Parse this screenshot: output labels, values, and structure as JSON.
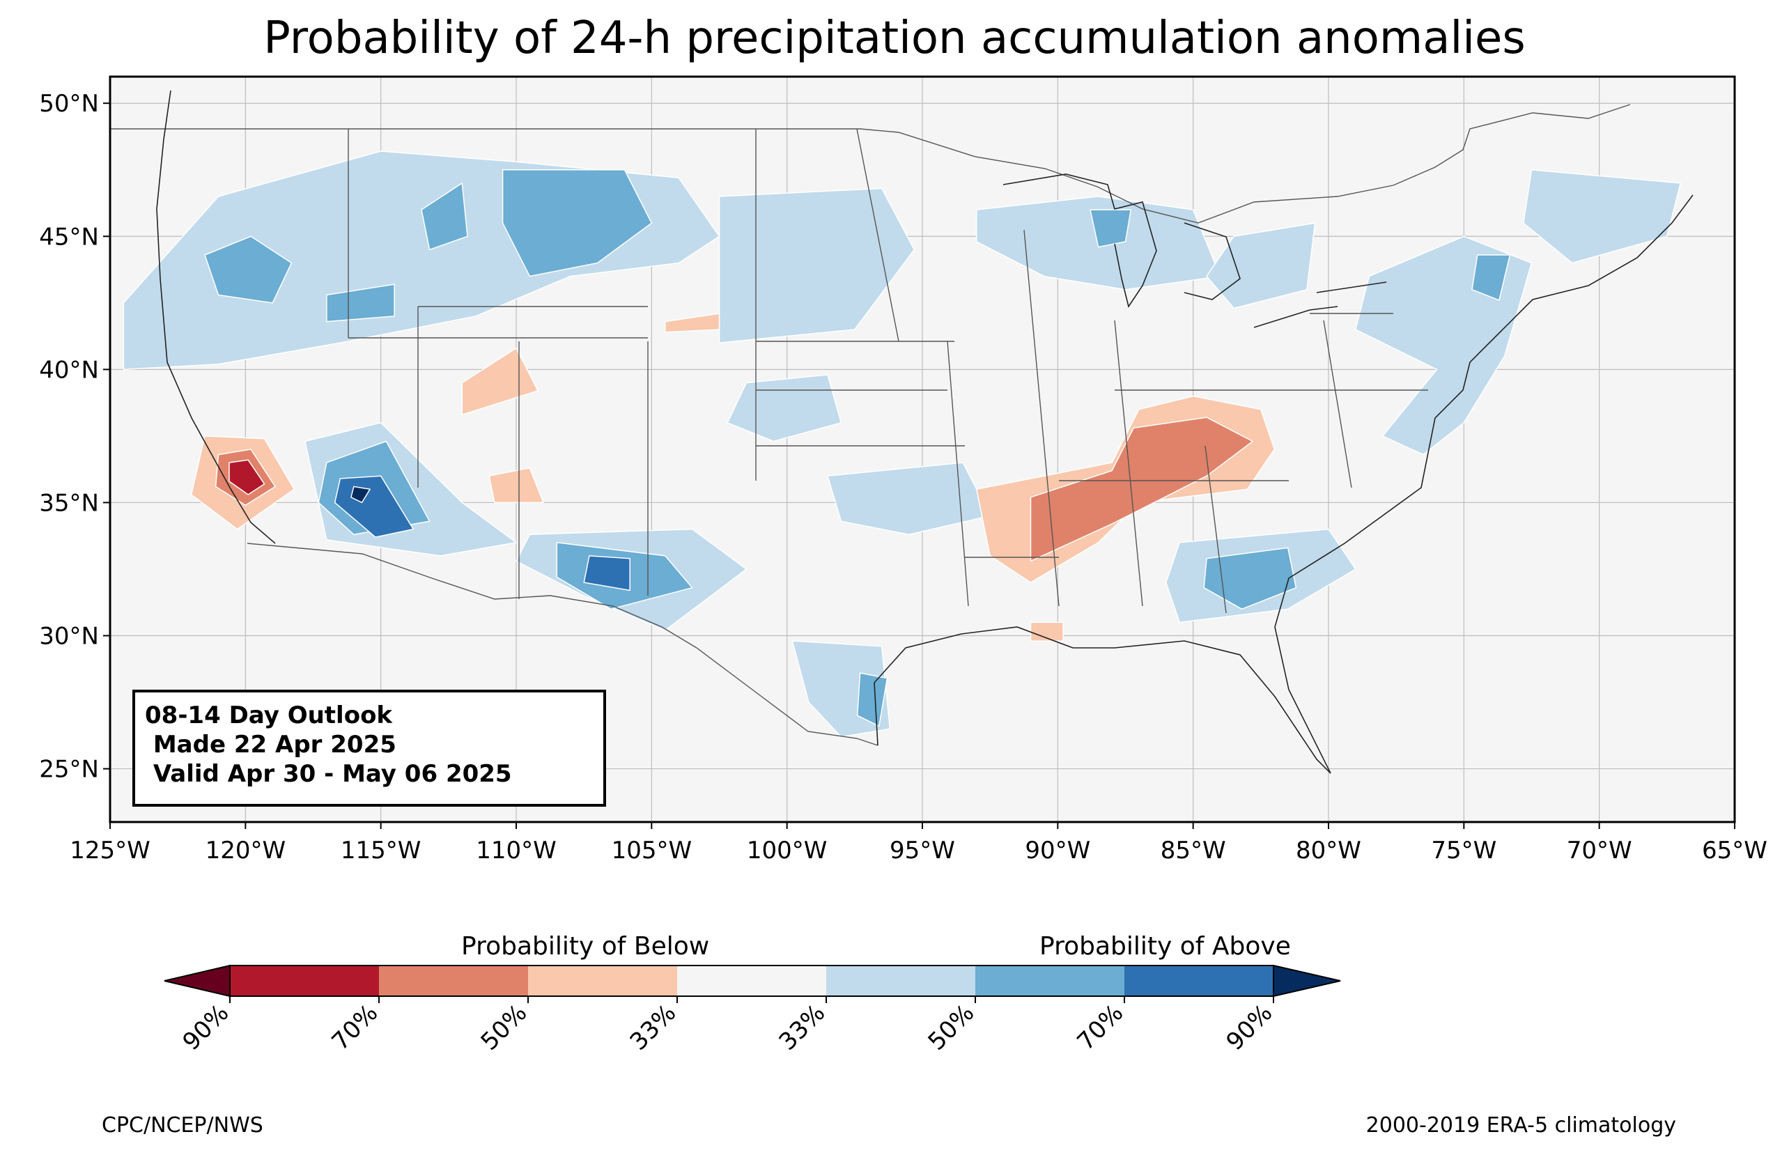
{
  "title": "Probability of 24-h precipitation accumulation anomalies",
  "outlook": {
    "line1": "08-14 Day Outlook",
    "line2": " Made 22 Apr 2025",
    "line3": " Valid Apr 30 - May 06 2025"
  },
  "map": {
    "lon_range": [
      -125,
      -65
    ],
    "lat_range": [
      23,
      51
    ],
    "lat_ticks": [
      "25°N",
      "30°N",
      "35°N",
      "40°N",
      "45°N",
      "50°N"
    ],
    "lon_ticks": [
      "125°W",
      "120°W",
      "115°W",
      "110°W",
      "105°W",
      "100°W",
      "95°W",
      "90°W",
      "85°W",
      "80°W",
      "75°W",
      "70°W",
      "65°W"
    ],
    "background_color": "#f5f5f5",
    "grid": true
  },
  "colorbar": {
    "below_label": "Probability of Below",
    "above_label": "Probability of Above",
    "tick_labels": [
      "90%",
      "70%",
      "50%",
      "33%",
      "33%",
      "50%",
      "70%",
      "90%"
    ],
    "colors": {
      "below_90": "#67001f",
      "below_70_90": "#b2182b",
      "below_50_70": "#e0826a",
      "below_33_50": "#f9c8ad",
      "neutral": "#f5f5f5",
      "above_33_50": "#c1dbec",
      "above_50_70": "#6badd3",
      "above_70_90": "#2e71b2",
      "above_90": "#062c5f"
    }
  },
  "anomaly_regions": [
    {
      "category": "below_33_50",
      "outline": [
        [
          -121.5,
          37.5
        ],
        [
          -119.3,
          37.4
        ],
        [
          -118.2,
          35.5
        ],
        [
          -120.3,
          34.0
        ],
        [
          -122.0,
          35.3
        ]
      ]
    },
    {
      "category": "below_50_70",
      "outline": [
        [
          -121.0,
          36.8
        ],
        [
          -119.8,
          37.0
        ],
        [
          -118.9,
          35.6
        ],
        [
          -120.0,
          34.9
        ],
        [
          -121.1,
          35.6
        ]
      ]
    },
    {
      "category": "below_70_90",
      "outline": [
        [
          -120.6,
          36.5
        ],
        [
          -119.9,
          36.6
        ],
        [
          -119.3,
          35.7
        ],
        [
          -119.9,
          35.3
        ],
        [
          -120.6,
          35.8
        ]
      ]
    },
    {
      "category": "above_33_50",
      "outline": [
        [
          -117.8,
          37.3
        ],
        [
          -115.0,
          38.0
        ],
        [
          -112.0,
          35.0
        ],
        [
          -110.0,
          33.5
        ],
        [
          -112.8,
          33.0
        ],
        [
          -117.0,
          33.6
        ]
      ]
    },
    {
      "category": "above_50_70",
      "outline": [
        [
          -117.0,
          36.5
        ],
        [
          -114.8,
          37.3
        ],
        [
          -113.2,
          34.3
        ],
        [
          -116.0,
          33.8
        ],
        [
          -117.3,
          35.0
        ]
      ]
    },
    {
      "category": "above_70_90",
      "outline": [
        [
          -116.5,
          35.9
        ],
        [
          -115.0,
          36.0
        ],
        [
          -113.8,
          34.0
        ],
        [
          -115.2,
          33.7
        ],
        [
          -116.7,
          35.0
        ]
      ]
    },
    {
      "category": "above_90",
      "outline": [
        [
          -116.0,
          35.6
        ],
        [
          -115.4,
          35.5
        ],
        [
          -115.7,
          35.0
        ],
        [
          -116.1,
          35.2
        ]
      ]
    },
    {
      "category": "above_33_50",
      "outline": [
        [
          -109.5,
          33.8
        ],
        [
          -103.5,
          34.0
        ],
        [
          -101.5,
          32.5
        ],
        [
          -104.5,
          30.2
        ],
        [
          -107.5,
          31.5
        ],
        [
          -110.0,
          32.8
        ]
      ]
    },
    {
      "category": "above_50_70",
      "outline": [
        [
          -108.5,
          33.5
        ],
        [
          -104.5,
          33.0
        ],
        [
          -103.5,
          31.8
        ],
        [
          -106.5,
          31.0
        ],
        [
          -108.5,
          32.2
        ]
      ]
    },
    {
      "category": "above_70_90",
      "outline": [
        [
          -107.3,
          33.0
        ],
        [
          -105.8,
          32.9
        ],
        [
          -105.8,
          31.7
        ],
        [
          -107.5,
          32.0
        ]
      ]
    },
    {
      "category": "above_33_50",
      "outline": [
        [
          -99.8,
          29.8
        ],
        [
          -96.5,
          29.6
        ],
        [
          -96.2,
          26.5
        ],
        [
          -98.0,
          26.2
        ],
        [
          -99.2,
          27.5
        ]
      ]
    },
    {
      "category": "above_50_70",
      "outline": [
        [
          -97.3,
          28.6
        ],
        [
          -96.3,
          28.4
        ],
        [
          -96.6,
          26.6
        ],
        [
          -97.4,
          27.0
        ]
      ]
    },
    {
      "category": "above_33_50",
      "outline": [
        [
          -124.5,
          42.5
        ],
        [
          -121.0,
          46.5
        ],
        [
          -115.0,
          48.2
        ],
        [
          -110.0,
          47.8
        ],
        [
          -104.0,
          47.2
        ],
        [
          -102.5,
          45.0
        ],
        [
          -104.0,
          44.0
        ],
        [
          -108.0,
          43.5
        ],
        [
          -111.5,
          42.0
        ],
        [
          -116.5,
          41.0
        ],
        [
          -121.0,
          40.2
        ],
        [
          -124.5,
          40.0
        ]
      ]
    },
    {
      "category": "above_50_70",
      "outline": [
        [
          -121.5,
          44.3
        ],
        [
          -119.8,
          45.0
        ],
        [
          -118.3,
          44.0
        ],
        [
          -119.0,
          42.5
        ],
        [
          -121.0,
          42.8
        ]
      ]
    },
    {
      "category": "above_50_70",
      "outline": [
        [
          -113.5,
          46.0
        ],
        [
          -112.0,
          47.0
        ],
        [
          -111.8,
          45.0
        ],
        [
          -113.2,
          44.5
        ]
      ]
    },
    {
      "category": "above_50_70",
      "outline": [
        [
          -110.5,
          47.5
        ],
        [
          -106.0,
          47.5
        ],
        [
          -105.0,
          45.5
        ],
        [
          -107.0,
          44.0
        ],
        [
          -109.5,
          43.5
        ],
        [
          -110.5,
          45.5
        ]
      ]
    },
    {
      "category": "above_50_70",
      "outline": [
        [
          -117.0,
          42.8
        ],
        [
          -114.5,
          43.2
        ],
        [
          -114.5,
          42.0
        ],
        [
          -117.0,
          41.8
        ]
      ]
    },
    {
      "category": "above_33_50",
      "outline": [
        [
          -102.5,
          46.5
        ],
        [
          -96.5,
          46.8
        ],
        [
          -95.3,
          44.5
        ],
        [
          -97.5,
          41.5
        ],
        [
          -102.5,
          41.0
        ],
        [
          -102.5,
          43.5
        ]
      ]
    },
    {
      "category": "above_33_50",
      "outline": [
        [
          -93.0,
          46.0
        ],
        [
          -88.5,
          46.5
        ],
        [
          -85.0,
          46.0
        ],
        [
          -84.0,
          43.5
        ],
        [
          -87.5,
          43.0
        ],
        [
          -90.5,
          43.5
        ],
        [
          -93.0,
          44.8
        ]
      ]
    },
    {
      "category": "above_50_70",
      "outline": [
        [
          -88.8,
          46.0
        ],
        [
          -87.3,
          46.0
        ],
        [
          -87.5,
          44.8
        ],
        [
          -88.5,
          44.6
        ]
      ]
    },
    {
      "category": "above_33_50",
      "outline": [
        [
          -83.5,
          45.0
        ],
        [
          -80.5,
          45.5
        ],
        [
          -80.8,
          43.0
        ],
        [
          -83.5,
          42.3
        ],
        [
          -84.5,
          43.5
        ]
      ]
    },
    {
      "category": "above_33_50",
      "outline": [
        [
          -78.5,
          43.5
        ],
        [
          -75.0,
          45.0
        ],
        [
          -72.5,
          44.0
        ],
        [
          -73.5,
          40.5
        ],
        [
          -75.0,
          38.0
        ],
        [
          -76.5,
          36.8
        ],
        [
          -78.0,
          37.5
        ],
        [
          -76.0,
          40.0
        ],
        [
          -79.0,
          41.5
        ]
      ]
    },
    {
      "category": "above_50_70",
      "outline": [
        [
          -74.5,
          44.3
        ],
        [
          -73.3,
          44.3
        ],
        [
          -73.7,
          42.6
        ],
        [
          -74.7,
          43.0
        ]
      ]
    },
    {
      "category": "above_33_50",
      "outline": [
        [
          -72.5,
          47.5
        ],
        [
          -67.0,
          47.0
        ],
        [
          -67.5,
          45.0
        ],
        [
          -71.0,
          44.0
        ],
        [
          -72.8,
          45.5
        ]
      ]
    },
    {
      "category": "above_33_50",
      "outline": [
        [
          -85.5,
          33.5
        ],
        [
          -80.0,
          34.0
        ],
        [
          -79.0,
          32.5
        ],
        [
          -81.5,
          31.0
        ],
        [
          -85.5,
          30.5
        ],
        [
          -86.0,
          32.0
        ]
      ]
    },
    {
      "category": "above_50_70",
      "outline": [
        [
          -84.5,
          32.9
        ],
        [
          -81.5,
          33.3
        ],
        [
          -81.2,
          31.8
        ],
        [
          -83.2,
          31.0
        ],
        [
          -84.6,
          31.8
        ]
      ]
    },
    {
      "category": "above_33_50",
      "outline": [
        [
          -98.5,
          36.0
        ],
        [
          -93.5,
          36.5
        ],
        [
          -92.5,
          34.5
        ],
        [
          -95.5,
          33.8
        ],
        [
          -98.0,
          34.3
        ]
      ]
    },
    {
      "category": "above_33_50",
      "outline": [
        [
          -101.5,
          39.5
        ],
        [
          -98.5,
          39.8
        ],
        [
          -98.0,
          38.0
        ],
        [
          -100.5,
          37.3
        ],
        [
          -102.2,
          38.0
        ]
      ]
    },
    {
      "category": "below_33_50",
      "outline": [
        [
          -93.0,
          35.5
        ],
        [
          -88.0,
          36.5
        ],
        [
          -87.0,
          38.5
        ],
        [
          -85.0,
          39.0
        ],
        [
          -82.5,
          38.5
        ],
        [
          -82.0,
          37.0
        ],
        [
          -83.0,
          35.5
        ],
        [
          -87.0,
          35.0
        ],
        [
          -88.5,
          33.5
        ],
        [
          -91.0,
          32.0
        ],
        [
          -92.5,
          33.0
        ]
      ]
    },
    {
      "category": "below_50_70",
      "outline": [
        [
          -91.0,
          35.2
        ],
        [
          -88.0,
          36.2
        ],
        [
          -87.2,
          37.8
        ],
        [
          -84.5,
          38.2
        ],
        [
          -82.8,
          37.3
        ],
        [
          -84.5,
          36.0
        ],
        [
          -88.0,
          34.2
        ],
        [
          -91.0,
          32.8
        ]
      ]
    },
    {
      "category": "below_33_50",
      "outline": [
        [
          -112.0,
          39.5
        ],
        [
          -110.0,
          40.8
        ],
        [
          -109.2,
          39.2
        ],
        [
          -112.0,
          38.3
        ]
      ]
    },
    {
      "category": "below_33_50",
      "outline": [
        [
          -104.5,
          41.8
        ],
        [
          -102.5,
          42.1
        ],
        [
          -102.5,
          41.5
        ],
        [
          -104.5,
          41.4
        ]
      ]
    },
    {
      "category": "below_33_50",
      "outline": [
        [
          -111.0,
          36.0
        ],
        [
          -109.5,
          36.3
        ],
        [
          -109.0,
          35.0
        ],
        [
          -110.8,
          35.0
        ]
      ]
    },
    {
      "category": "below_33_50",
      "outline": [
        [
          -91.0,
          30.5
        ],
        [
          -89.8,
          30.5
        ],
        [
          -89.8,
          29.8
        ],
        [
          -91.0,
          29.8
        ]
      ]
    }
  ],
  "credits": {
    "left": "CPC/NCEP/NWS",
    "right": "2000-2019 ERA-5 climatology"
  }
}
